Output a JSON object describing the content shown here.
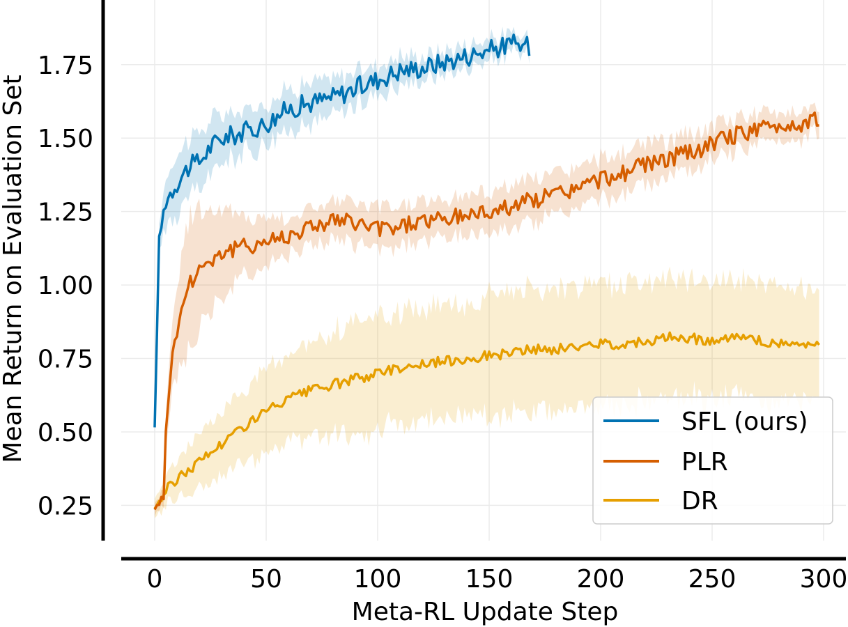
{
  "chart_data": {
    "type": "line",
    "title": "",
    "xlabel": "Meta-RL Update Step",
    "ylabel": "Mean Return on Evaluation Set",
    "xlim": [
      -15,
      310
    ],
    "ylim": [
      0.13,
      1.97
    ],
    "xticks": [
      0,
      50,
      100,
      150,
      200,
      250,
      300
    ],
    "yticks": [
      0.25,
      0.5,
      0.75,
      1.0,
      1.25,
      1.5,
      1.75
    ],
    "xtick_labels": [
      "0",
      "50",
      "100",
      "150",
      "200",
      "250",
      "300"
    ],
    "ytick_labels": [
      "0.25",
      "0.50",
      "0.75",
      "1.00",
      "1.25",
      "1.50",
      "1.75"
    ],
    "grid": true,
    "legend_position": "lower-right",
    "series": [
      {
        "name": "SFL (ours)",
        "color": "#0072b2",
        "shaded_band": true,
        "x": [
          0,
          2,
          5,
          10,
          15,
          20,
          25,
          30,
          40,
          50,
          60,
          70,
          80,
          90,
          100,
          110,
          120,
          130,
          140,
          150,
          160,
          168
        ],
        "y": [
          0.51,
          1.16,
          1.29,
          1.35,
          1.4,
          1.42,
          1.47,
          1.5,
          1.52,
          1.55,
          1.6,
          1.62,
          1.64,
          1.67,
          1.7,
          1.73,
          1.74,
          1.76,
          1.78,
          1.8,
          1.82,
          1.81
        ],
        "band_halfwidth": [
          0.02,
          0.05,
          0.08,
          0.1,
          0.1,
          0.1,
          0.09,
          0.08,
          0.07,
          0.07,
          0.07,
          0.07,
          0.06,
          0.06,
          0.05,
          0.05,
          0.04,
          0.04,
          0.04,
          0.04,
          0.03,
          0.03
        ]
      },
      {
        "name": "PLR",
        "color": "#d55e00",
        "shaded_band": true,
        "x": [
          0,
          4,
          5,
          7,
          10,
          15,
          20,
          30,
          40,
          50,
          60,
          70,
          80,
          90,
          100,
          110,
          120,
          130,
          140,
          150,
          160,
          170,
          180,
          190,
          200,
          210,
          220,
          230,
          240,
          250,
          260,
          270,
          280,
          290,
          298
        ],
        "y": [
          0.24,
          0.27,
          0.52,
          0.7,
          0.85,
          1.0,
          1.06,
          1.11,
          1.13,
          1.15,
          1.17,
          1.2,
          1.22,
          1.21,
          1.19,
          1.2,
          1.22,
          1.22,
          1.24,
          1.25,
          1.27,
          1.29,
          1.31,
          1.33,
          1.36,
          1.38,
          1.41,
          1.43,
          1.45,
          1.48,
          1.51,
          1.53,
          1.54,
          1.55,
          1.57
        ],
        "band_halfwidth": [
          0.02,
          0.03,
          0.06,
          0.1,
          0.16,
          0.22,
          0.2,
          0.15,
          0.1,
          0.08,
          0.06,
          0.06,
          0.07,
          0.07,
          0.07,
          0.07,
          0.07,
          0.07,
          0.07,
          0.07,
          0.07,
          0.07,
          0.07,
          0.07,
          0.07,
          0.07,
          0.07,
          0.06,
          0.06,
          0.06,
          0.06,
          0.05,
          0.05,
          0.05,
          0.04
        ]
      },
      {
        "name": "DR",
        "color": "#e69f00",
        "shaded_band": true,
        "x": [
          0,
          5,
          10,
          20,
          30,
          40,
          50,
          60,
          70,
          80,
          90,
          100,
          110,
          120,
          130,
          140,
          150,
          160,
          170,
          180,
          190,
          200,
          210,
          220,
          230,
          240,
          250,
          260,
          270,
          280,
          290,
          298
        ],
        "y": [
          0.24,
          0.3,
          0.34,
          0.4,
          0.46,
          0.52,
          0.57,
          0.61,
          0.64,
          0.66,
          0.68,
          0.7,
          0.72,
          0.73,
          0.74,
          0.75,
          0.76,
          0.77,
          0.78,
          0.78,
          0.79,
          0.8,
          0.8,
          0.81,
          0.82,
          0.82,
          0.81,
          0.82,
          0.81,
          0.8,
          0.8,
          0.8
        ],
        "band_halfwidth": [
          0.03,
          0.05,
          0.07,
          0.09,
          0.11,
          0.13,
          0.15,
          0.16,
          0.17,
          0.18,
          0.18,
          0.19,
          0.19,
          0.19,
          0.19,
          0.19,
          0.2,
          0.2,
          0.2,
          0.2,
          0.2,
          0.2,
          0.2,
          0.2,
          0.2,
          0.2,
          0.2,
          0.2,
          0.2,
          0.2,
          0.2,
          0.2
        ]
      }
    ]
  }
}
